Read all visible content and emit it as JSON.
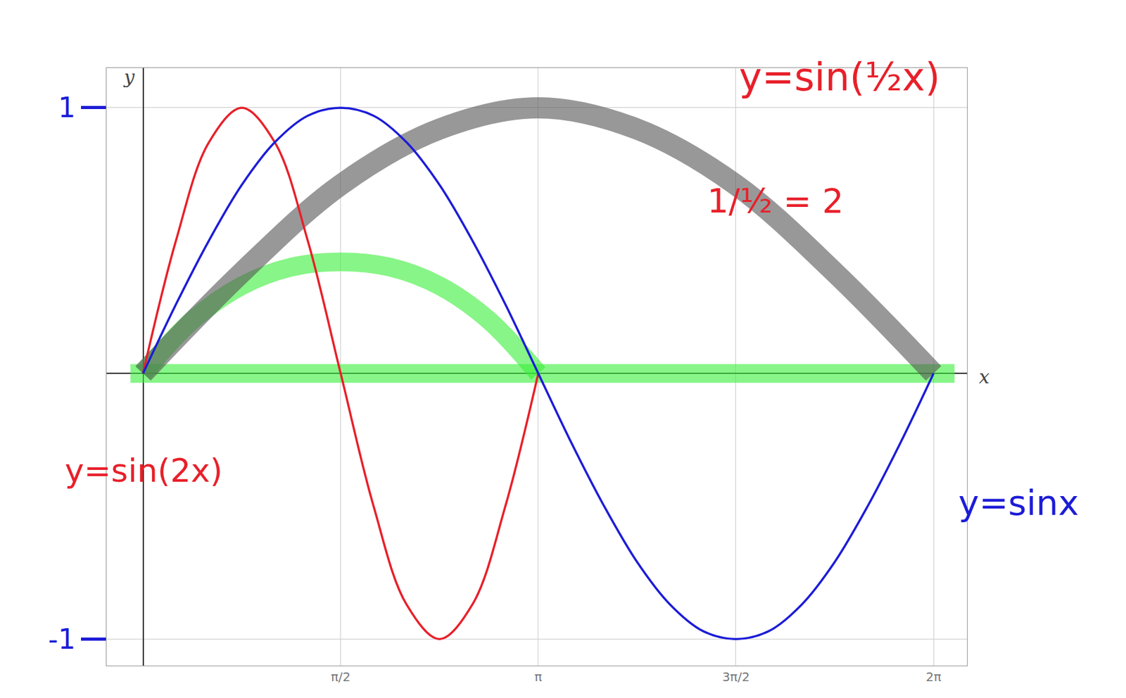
{
  "chart_data": {
    "type": "line",
    "x_label": "x",
    "y_label": "y",
    "xlim": [
      -0.29,
      6.55
    ],
    "ylim": [
      -1.1,
      1.15
    ],
    "xticks": [
      {
        "value": 1.5708,
        "label": "π/2"
      },
      {
        "value": 3.1416,
        "label": "π"
      },
      {
        "value": 4.7124,
        "label": "3π/2"
      },
      {
        "value": 6.2832,
        "label": "2π"
      }
    ],
    "yticks": [
      -1,
      1
    ],
    "grid": true,
    "series": [
      {
        "color": "#39f039",
        "line_style": "highlight",
        "x": [
          -0.1,
          6.45
        ],
        "values": [
          0,
          0
        ]
      },
      {
        "color": "#39f039",
        "line_style": "highlight",
        "x": [
          0,
          0.3927,
          0.7854,
          1.1781,
          1.5708,
          1.9635,
          2.3562,
          2.7489,
          3.1416
        ],
        "values": [
          0,
          0.2,
          0.33,
          0.4,
          0.42,
          0.4,
          0.33,
          0.2,
          0
        ]
      },
      {
        "color": "#555555",
        "line_style": "highlight",
        "x": [
          0,
          0.7854,
          1.5708,
          2.3562,
          3.1416,
          3.927,
          4.7124,
          5.4978,
          6.2832
        ],
        "values": [
          0,
          0.38,
          0.71,
          0.92,
          1,
          0.92,
          0.71,
          0.38,
          0
        ]
      },
      {
        "color": "#e8202a",
        "line_style": "solid",
        "x": [
          0,
          0.2618,
          0.5236,
          0.7854,
          1.0472,
          1.309,
          1.5708,
          1.8326,
          2.0944,
          2.3562,
          2.618,
          2.8798,
          3.1416
        ],
        "values": [
          0,
          0.5,
          0.87,
          1,
          0.87,
          0.5,
          0,
          -0.5,
          -0.87,
          -1,
          -0.87,
          -0.5,
          0
        ]
      },
      {
        "color": "#1c1cd8",
        "line_style": "solid",
        "x": [
          0,
          0.2618,
          0.5236,
          0.7854,
          1.0472,
          1.309,
          1.5708,
          1.8326,
          2.0944,
          2.3562,
          2.618,
          2.8798,
          3.1416,
          3.4034,
          3.6652,
          3.927,
          4.1888,
          4.4506,
          4.7124,
          4.9742,
          5.236,
          5.4978,
          5.7596,
          6.0214,
          6.2832
        ],
        "values": [
          0,
          0.26,
          0.5,
          0.71,
          0.87,
          0.97,
          1,
          0.97,
          0.87,
          0.71,
          0.5,
          0.26,
          0,
          -0.26,
          -0.5,
          -0.71,
          -0.87,
          -0.97,
          -1,
          -0.97,
          -0.87,
          -0.71,
          -0.5,
          -0.26,
          0
        ]
      }
    ],
    "annotations": [
      {
        "text": "y=sin(½x)",
        "color": "#e8202a"
      },
      {
        "text": "1/½ = 2",
        "color": "#e8202a"
      },
      {
        "text": "y=sin(2x)",
        "color": "#e8202a"
      },
      {
        "text": "y=sinx",
        "color": "#1c1cd8"
      }
    ]
  }
}
